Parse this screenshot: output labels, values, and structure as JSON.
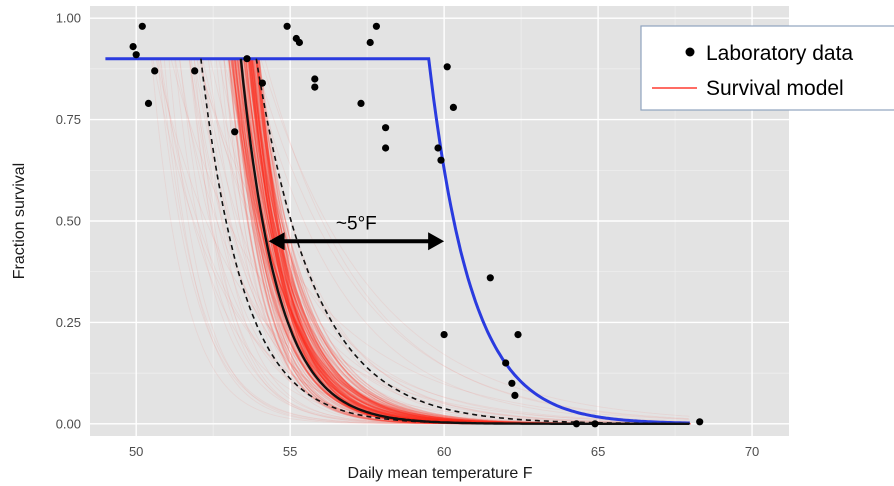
{
  "chart_data": {
    "type": "scatter",
    "xlabel": "Daily mean temperature F",
    "ylabel": "Fraction survival",
    "xlim": [
      48.5,
      71.2
    ],
    "ylim": [
      -0.03,
      1.03
    ],
    "x_ticks": [
      50,
      55,
      60,
      65,
      70
    ],
    "y_ticks": [
      0.0,
      0.25,
      0.5,
      0.75,
      1.0
    ],
    "x_tick_labels": [
      "50",
      "55",
      "60",
      "65",
      "70"
    ],
    "y_tick_labels": [
      "0.00",
      "0.25",
      "0.50",
      "0.75",
      "1.00"
    ],
    "grid": true,
    "legend_position": "top-right",
    "legend": [
      {
        "label": "Laboratory data",
        "marker": "point",
        "color": "#000000"
      },
      {
        "label": "Survival model",
        "marker": "line",
        "color": "#ff3b30"
      }
    ],
    "annotation": {
      "text": "~5°F",
      "arrow_from": 54.3,
      "arrow_to": 60.0,
      "y": 0.45
    },
    "series": [
      {
        "name": "Laboratory data",
        "type": "scatter",
        "color": "#000000",
        "points": [
          [
            49.9,
            0.93
          ],
          [
            50.0,
            0.91
          ],
          [
            50.2,
            0.98
          ],
          [
            50.4,
            0.79
          ],
          [
            50.6,
            0.87
          ],
          [
            51.9,
            0.87
          ],
          [
            53.2,
            0.72
          ],
          [
            53.6,
            0.9
          ],
          [
            54.1,
            0.84
          ],
          [
            54.9,
            0.98
          ],
          [
            55.2,
            0.95
          ],
          [
            55.3,
            0.94
          ],
          [
            55.8,
            0.85
          ],
          [
            55.8,
            0.83
          ],
          [
            57.3,
            0.79
          ],
          [
            57.6,
            0.94
          ],
          [
            57.8,
            0.98
          ],
          [
            58.1,
            0.73
          ],
          [
            58.1,
            0.68
          ],
          [
            59.8,
            0.68
          ],
          [
            59.9,
            0.65
          ],
          [
            60.1,
            0.88
          ],
          [
            60.0,
            0.22
          ],
          [
            60.3,
            0.78
          ],
          [
            61.5,
            0.36
          ],
          [
            62.0,
            0.15
          ],
          [
            62.2,
            0.1
          ],
          [
            62.3,
            0.07
          ],
          [
            62.4,
            0.22
          ],
          [
            64.3,
            0.0
          ],
          [
            64.9,
            0.0
          ],
          [
            68.3,
            0.005
          ]
        ]
      },
      {
        "type": "line",
        "color": "#2a3bdf",
        "x_start": 49.0,
        "plateau": 0.9,
        "x_break": 59.5,
        "decay_rate": 0.72,
        "x_end": 68.0
      },
      {
        "type": "line",
        "color": "#111111",
        "style": "solid",
        "x_start": 53.4,
        "plateau": 0.9,
        "decay_rate": 0.84,
        "x_end": 68.0
      },
      {
        "type": "line",
        "color": "#111111",
        "style": "dashed",
        "x_start": 52.1,
        "plateau": 0.9,
        "decay_rate": 0.72,
        "x_end": 68.0
      },
      {
        "type": "line",
        "color": "#111111",
        "style": "dashed",
        "x_start": 53.9,
        "plateau": 0.9,
        "decay_rate": 0.52,
        "x_end": 68.0
      },
      {
        "type": "band",
        "color": "#ff2a1a",
        "x_start_range": [
          50.5,
          54.2
        ],
        "decay_rate_range": [
          0.26,
          1.0
        ],
        "plateau": 0.9,
        "x_end": 68.0
      }
    ]
  }
}
